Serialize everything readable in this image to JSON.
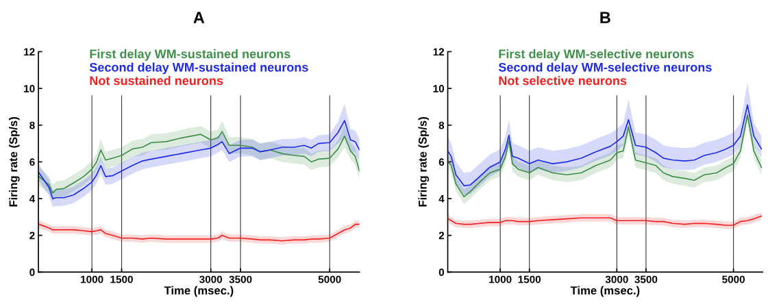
{
  "chart_data": [
    {
      "type": "line",
      "title": "A",
      "xlabel": "Time (msec.)",
      "ylabel": "Firing rate (Sp/s)",
      "xlim": [
        100,
        5500
      ],
      "xticks": [
        1000,
        1500,
        3000,
        3500,
        5000
      ],
      "ylim": [
        0,
        12
      ],
      "yticks": [
        0,
        2,
        4,
        6,
        8,
        10,
        12
      ],
      "grid": false,
      "legend": "top",
      "x": [
        110,
        280,
        340,
        400,
        530,
        690,
        860,
        1000,
        1080,
        1150,
        1230,
        1350,
        1500,
        1680,
        1850,
        2000,
        2250,
        2500,
        2830,
        3000,
        3120,
        3190,
        3310,
        3500,
        3700,
        3830,
        4000,
        4200,
        4400,
        4570,
        4690,
        4810,
        5000,
        5140,
        5250,
        5350,
        5430,
        5500
      ],
      "ref_lines": [
        {
          "axis": "x",
          "value": 1000,
          "color": "#333333"
        },
        {
          "axis": "x",
          "value": 1500,
          "color": "#333333"
        },
        {
          "axis": "x",
          "value": 3000,
          "color": "#333333"
        },
        {
          "axis": "x",
          "value": 3500,
          "color": "#333333"
        },
        {
          "axis": "x",
          "value": 5000,
          "color": "#333333"
        }
      ],
      "series": [
        {
          "name": "First delay WM-sustained neurons",
          "color": "#3f8f4a",
          "values": [
            5.2,
            4.75,
            4.3,
            4.5,
            4.55,
            4.85,
            5.2,
            5.6,
            6.0,
            6.65,
            6.1,
            6.2,
            6.35,
            6.7,
            6.8,
            7.05,
            7.1,
            7.3,
            7.5,
            7.2,
            7.3,
            7.65,
            6.9,
            6.9,
            6.8,
            6.55,
            6.65,
            6.45,
            6.35,
            6.3,
            6.0,
            6.15,
            6.2,
            6.7,
            7.4,
            6.6,
            6.3,
            5.5
          ],
          "lower": [
            4.7,
            4.3,
            3.85,
            4.05,
            4.1,
            4.4,
            4.75,
            5.15,
            5.55,
            6.05,
            5.65,
            5.75,
            5.9,
            6.25,
            6.35,
            6.6,
            6.65,
            6.85,
            7.05,
            6.75,
            6.85,
            7.05,
            6.45,
            6.45,
            6.35,
            6.1,
            6.2,
            6.0,
            5.9,
            5.85,
            5.55,
            5.7,
            5.75,
            6.25,
            6.8,
            6.15,
            5.85,
            5.05
          ],
          "upper": [
            5.7,
            5.2,
            4.75,
            4.95,
            5.0,
            5.3,
            5.65,
            6.05,
            6.45,
            7.25,
            6.55,
            6.65,
            6.8,
            7.15,
            7.25,
            7.5,
            7.55,
            7.75,
            7.95,
            7.65,
            7.75,
            8.25,
            7.35,
            7.35,
            7.25,
            7.0,
            7.1,
            6.9,
            6.8,
            6.75,
            6.45,
            6.6,
            6.65,
            7.15,
            8.0,
            7.05,
            6.75,
            5.95
          ]
        },
        {
          "name": "Second delay WM-sustained neurons",
          "color": "#1f2be8",
          "values": [
            5.4,
            4.6,
            4.0,
            4.05,
            4.05,
            4.2,
            4.55,
            4.9,
            5.3,
            5.8,
            5.2,
            5.25,
            5.5,
            5.8,
            6.05,
            6.15,
            6.3,
            6.45,
            6.65,
            6.75,
            6.95,
            7.1,
            6.45,
            6.75,
            6.75,
            6.55,
            6.65,
            6.8,
            6.8,
            6.9,
            6.75,
            7.0,
            7.05,
            7.6,
            8.25,
            7.2,
            7.1,
            6.65
          ],
          "lower": [
            4.95,
            4.15,
            3.55,
            3.6,
            3.6,
            3.75,
            4.1,
            4.45,
            4.85,
            5.35,
            4.75,
            4.8,
            5.05,
            5.35,
            5.6,
            5.7,
            5.85,
            6.0,
            6.2,
            6.3,
            6.5,
            6.65,
            6.0,
            6.3,
            6.3,
            6.1,
            6.2,
            6.35,
            6.35,
            6.45,
            6.3,
            6.55,
            6.6,
            7.0,
            7.35,
            6.6,
            6.5,
            6.05
          ],
          "upper": [
            5.85,
            5.05,
            4.45,
            4.5,
            4.5,
            4.65,
            5.0,
            5.35,
            5.75,
            6.25,
            5.65,
            5.7,
            5.95,
            6.25,
            6.5,
            6.6,
            6.75,
            6.9,
            7.1,
            7.2,
            7.4,
            7.55,
            6.9,
            7.2,
            7.2,
            7.0,
            7.1,
            7.25,
            7.25,
            7.35,
            7.2,
            7.45,
            7.5,
            8.2,
            9.15,
            7.8,
            7.7,
            7.25
          ]
        },
        {
          "name": "Not sustained neurons",
          "color": "#f02020",
          "values": [
            2.6,
            2.4,
            2.3,
            2.3,
            2.3,
            2.3,
            2.25,
            2.2,
            2.25,
            2.3,
            2.1,
            2.0,
            1.85,
            1.85,
            1.8,
            1.85,
            1.8,
            1.8,
            1.8,
            1.8,
            1.85,
            2.0,
            1.85,
            1.85,
            1.8,
            1.75,
            1.75,
            1.7,
            1.75,
            1.75,
            1.8,
            1.8,
            1.85,
            2.1,
            2.3,
            2.4,
            2.6,
            2.6
          ],
          "lower": [
            2.4,
            2.2,
            2.1,
            2.1,
            2.1,
            2.1,
            2.05,
            2.0,
            2.05,
            2.1,
            1.9,
            1.8,
            1.65,
            1.65,
            1.6,
            1.65,
            1.6,
            1.6,
            1.6,
            1.6,
            1.65,
            1.8,
            1.65,
            1.65,
            1.6,
            1.55,
            1.55,
            1.5,
            1.55,
            1.55,
            1.6,
            1.6,
            1.65,
            1.9,
            2.1,
            2.2,
            2.4,
            2.4
          ],
          "upper": [
            2.8,
            2.6,
            2.5,
            2.5,
            2.5,
            2.5,
            2.45,
            2.4,
            2.45,
            2.5,
            2.3,
            2.2,
            2.05,
            2.05,
            2.0,
            2.05,
            2.0,
            2.0,
            2.0,
            2.0,
            2.05,
            2.2,
            2.05,
            2.05,
            2.0,
            1.95,
            1.95,
            1.9,
            1.95,
            1.95,
            2.0,
            2.0,
            2.05,
            2.3,
            2.5,
            2.6,
            2.8,
            2.8
          ]
        }
      ]
    },
    {
      "type": "line",
      "title": "B",
      "xlabel": "Time (msec.)",
      "ylabel": "Firing rate (Sp/s)",
      "xlim": [
        100,
        5500
      ],
      "xticks": [
        1000,
        1500,
        3000,
        3500,
        5000
      ],
      "ylim": [
        0,
        12
      ],
      "yticks": [
        0,
        2,
        4,
        6,
        8,
        10,
        12
      ],
      "grid": false,
      "legend": "top",
      "x": [
        110,
        160,
        240,
        380,
        490,
        650,
        820,
        1000,
        1090,
        1150,
        1210,
        1310,
        1500,
        1650,
        1900,
        2140,
        2390,
        2640,
        2890,
        3000,
        3110,
        3200,
        3320,
        3500,
        3670,
        3800,
        3960,
        4170,
        4330,
        4500,
        4710,
        4870,
        5000,
        5120,
        5240,
        5350,
        5480
      ],
      "ref_lines": [
        {
          "axis": "x",
          "value": 1000,
          "color": "#333333"
        },
        {
          "axis": "x",
          "value": 1500,
          "color": "#333333"
        },
        {
          "axis": "x",
          "value": 3000,
          "color": "#333333"
        },
        {
          "axis": "x",
          "value": 3500,
          "color": "#333333"
        },
        {
          "axis": "x",
          "value": 5000,
          "color": "#333333"
        }
      ],
      "series": [
        {
          "name": "First delay WM-selective neurons",
          "color": "#3f8f4a",
          "values": [
            6.0,
            5.8,
            4.8,
            4.1,
            4.4,
            4.9,
            5.4,
            5.6,
            6.3,
            7.15,
            5.9,
            5.6,
            5.4,
            5.7,
            5.4,
            5.3,
            5.4,
            5.8,
            6.1,
            6.5,
            6.6,
            7.9,
            6.1,
            5.95,
            5.8,
            5.4,
            5.2,
            5.1,
            5.0,
            5.3,
            5.4,
            5.7,
            5.9,
            6.6,
            8.55,
            6.6,
            5.7
          ],
          "lower": [
            5.6,
            5.4,
            4.4,
            3.7,
            4.0,
            4.5,
            5.0,
            5.2,
            5.9,
            6.75,
            5.5,
            5.2,
            5.0,
            5.3,
            5.0,
            4.9,
            5.0,
            5.4,
            5.7,
            6.1,
            6.2,
            7.5,
            5.7,
            5.55,
            5.4,
            5.0,
            4.8,
            4.7,
            4.6,
            4.9,
            5.0,
            5.3,
            5.5,
            6.2,
            8.15,
            6.2,
            5.3
          ],
          "upper": [
            6.4,
            6.2,
            5.2,
            4.5,
            4.8,
            5.3,
            5.8,
            6.0,
            6.7,
            7.55,
            6.3,
            6.0,
            5.8,
            6.1,
            5.8,
            5.7,
            5.8,
            6.2,
            6.5,
            6.9,
            7.0,
            8.3,
            6.5,
            6.35,
            6.2,
            5.8,
            5.6,
            5.5,
            5.4,
            5.7,
            5.8,
            6.1,
            6.3,
            7.0,
            8.95,
            7.0,
            6.1
          ]
        },
        {
          "name": "Second delay WM-selective neurons",
          "color": "#1f2be8",
          "values": [
            6.55,
            6.3,
            5.3,
            4.7,
            4.75,
            5.2,
            5.7,
            6.0,
            6.7,
            7.45,
            6.3,
            6.2,
            5.9,
            6.1,
            5.9,
            6.0,
            6.2,
            6.55,
            6.85,
            7.1,
            7.4,
            8.3,
            6.9,
            6.8,
            6.5,
            6.2,
            6.1,
            6.05,
            6.1,
            6.35,
            6.5,
            6.7,
            6.9,
            7.4,
            9.1,
            7.4,
            6.7
          ],
          "lower": [
            6.05,
            5.8,
            4.8,
            4.2,
            4.25,
            4.7,
            5.2,
            5.5,
            6.2,
            6.95,
            5.8,
            5.7,
            5.4,
            5.6,
            5.4,
            5.5,
            5.7,
            6.05,
            6.35,
            6.6,
            6.9,
            7.8,
            6.4,
            6.3,
            6.0,
            5.7,
            5.6,
            5.55,
            5.6,
            5.85,
            6.0,
            6.2,
            6.4,
            6.9,
            8.4,
            6.9,
            6.2
          ],
          "upper": [
            7.35,
            7.0,
            6.0,
            5.4,
            5.45,
            5.9,
            6.4,
            6.7,
            7.4,
            8.3,
            7.0,
            6.9,
            6.6,
            6.8,
            6.6,
            6.7,
            6.9,
            7.25,
            7.55,
            7.8,
            8.1,
            9.4,
            7.6,
            7.5,
            7.2,
            6.9,
            6.8,
            6.75,
            6.8,
            7.05,
            7.2,
            7.4,
            7.6,
            8.1,
            10.3,
            8.1,
            7.4
          ]
        },
        {
          "name": "Not selective neurons",
          "color": "#f02020",
          "values": [
            2.9,
            2.8,
            2.65,
            2.6,
            2.6,
            2.65,
            2.7,
            2.7,
            2.8,
            2.8,
            2.8,
            2.75,
            2.75,
            2.8,
            2.85,
            2.9,
            2.95,
            2.95,
            2.95,
            2.8,
            2.8,
            2.8,
            2.8,
            2.8,
            2.75,
            2.75,
            2.65,
            2.6,
            2.65,
            2.65,
            2.6,
            2.55,
            2.55,
            2.75,
            2.8,
            2.9,
            3.05
          ],
          "lower": [
            2.7,
            2.6,
            2.45,
            2.4,
            2.4,
            2.45,
            2.5,
            2.5,
            2.6,
            2.6,
            2.6,
            2.55,
            2.55,
            2.6,
            2.65,
            2.7,
            2.75,
            2.75,
            2.75,
            2.6,
            2.6,
            2.6,
            2.6,
            2.6,
            2.55,
            2.55,
            2.45,
            2.4,
            2.45,
            2.45,
            2.4,
            2.35,
            2.35,
            2.55,
            2.6,
            2.7,
            2.85
          ],
          "upper": [
            3.1,
            3.0,
            2.85,
            2.8,
            2.8,
            2.85,
            2.9,
            2.9,
            3.0,
            3.0,
            3.0,
            2.95,
            2.95,
            3.0,
            3.05,
            3.1,
            3.15,
            3.15,
            3.15,
            3.0,
            3.0,
            3.0,
            3.0,
            3.0,
            2.95,
            2.95,
            2.85,
            2.8,
            2.85,
            2.85,
            2.8,
            2.75,
            2.75,
            2.95,
            3.0,
            3.1,
            3.25
          ]
        }
      ]
    }
  ]
}
